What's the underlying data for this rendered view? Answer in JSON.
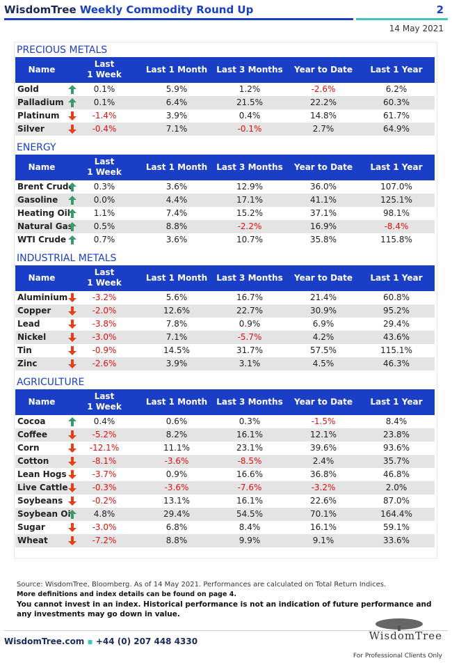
{
  "header": {
    "brand": "WisdomTree",
    "title": "Weekly Commodity Round Up",
    "page": "2",
    "date": "14 May 2021"
  },
  "sections": [
    {
      "title": "PRECIOUS METALS",
      "columns": [
        "Name",
        "Last\n1 Week",
        "Last 1 Month",
        "Last 3 Months",
        "Year to Date",
        "Last 1 Year"
      ],
      "rows": [
        [
          "Gold",
          "0.1%",
          "5.9%",
          "1.2%",
          "-2.6%",
          "6.2%"
        ],
        [
          "Palladium",
          "0.1%",
          "6.4%",
          "21.5%",
          "22.2%",
          "60.3%"
        ],
        [
          "Platinum",
          "-1.4%",
          "3.9%",
          "0.4%",
          "14.8%",
          "61.7%"
        ],
        [
          "Silver",
          "-0.4%",
          "7.1%",
          "-0.1%",
          "2.7%",
          "64.9%"
        ]
      ]
    },
    {
      "title": "ENERGY",
      "columns": [
        "Name",
        "Last\n1 Week",
        "Last 1 Month",
        "Last 3 Months",
        "Year to Date",
        "Last 1 Year"
      ],
      "rows": [
        [
          "Brent Crude",
          "0.3%",
          "3.6%",
          "12.9%",
          "36.0%",
          "107.0%"
        ],
        [
          "Gasoline",
          "0.0%",
          "4.4%",
          "17.1%",
          "41.1%",
          "125.1%"
        ],
        [
          "Heating Oil",
          "1.1%",
          "7.4%",
          "15.2%",
          "37.1%",
          "98.1%"
        ],
        [
          "Natural Gas",
          "0.5%",
          "8.8%",
          "-2.2%",
          "16.9%",
          "-8.4%"
        ],
        [
          "WTI Crude",
          "0.7%",
          "3.6%",
          "10.7%",
          "35.8%",
          "115.8%"
        ]
      ]
    },
    {
      "title": "INDUSTRIAL METALS",
      "columns": [
        "Name",
        "Last\n1 Week",
        "Last 1 Month",
        "Last 3 Months",
        "Year to Date",
        "Last 1 Year"
      ],
      "rows": [
        [
          "Aluminium",
          "-3.2%",
          "5.6%",
          "16.7%",
          "21.4%",
          "60.8%"
        ],
        [
          "Copper",
          "-2.0%",
          "12.6%",
          "22.7%",
          "30.9%",
          "95.2%"
        ],
        [
          "Lead",
          "-3.8%",
          "7.8%",
          "0.9%",
          "6.9%",
          "29.4%"
        ],
        [
          "Nickel",
          "-3.0%",
          "7.1%",
          "-5.7%",
          "4.2%",
          "43.6%"
        ],
        [
          "Tin",
          "-0.9%",
          "14.5%",
          "31.7%",
          "57.5%",
          "115.1%"
        ],
        [
          "Zinc",
          "-2.6%",
          "3.9%",
          "3.1%",
          "4.5%",
          "46.3%"
        ]
      ]
    },
    {
      "title": "AGRICULTURE",
      "columns": [
        "Name",
        "Last\n1 Week",
        "Last 1 Month",
        "Last 3 Months",
        "Year to Date",
        "Last 1 Year"
      ],
      "rows": [
        [
          "Cocoa",
          "0.4%",
          "0.6%",
          "0.3%",
          "-1.5%",
          "8.4%"
        ],
        [
          "Coffee",
          "-5.2%",
          "8.2%",
          "16.1%",
          "12.1%",
          "23.8%"
        ],
        [
          "Corn",
          "-12.1%",
          "11.1%",
          "23.1%",
          "39.6%",
          "93.6%"
        ],
        [
          "Cotton",
          "-8.1%",
          "-3.6%",
          "-8.5%",
          "2.4%",
          "35.7%"
        ],
        [
          "Lean Hogs",
          "-3.7%",
          "0.9%",
          "16.6%",
          "36.8%",
          "46.8%"
        ],
        [
          "Live Cattle",
          "-0.3%",
          "-3.6%",
          "-7.6%",
          "-3.2%",
          "2.0%"
        ],
        [
          "Soybeans",
          "-0.2%",
          "13.1%",
          "16.1%",
          "22.6%",
          "87.0%"
        ],
        [
          "Soybean Oil",
          "4.8%",
          "29.4%",
          "54.5%",
          "70.1%",
          "164.4%"
        ],
        [
          "Sugar",
          "-3.0%",
          "6.8%",
          "8.4%",
          "16.1%",
          "59.1%"
        ],
        [
          "Wheat",
          "-7.2%",
          "8.8%",
          "9.9%",
          "9.1%",
          "33.6%"
        ]
      ]
    }
  ],
  "footer": {
    "source": "Source: WisdomTree, Bloomberg. As of 14 May 2021. Performances are calculated on Total Return Indices.",
    "notes": [
      "More definitions and index details can be found on page 4.",
      "You cannot invest in an index. Historical performance is not an indication of future performance and any investments may go down in value."
    ],
    "website": "WisdomTree.com",
    "phone": "+44 (0) 207 448 4330",
    "logo": "WisdomTree",
    "disclaimer": "For Professional Clients Only"
  }
}
